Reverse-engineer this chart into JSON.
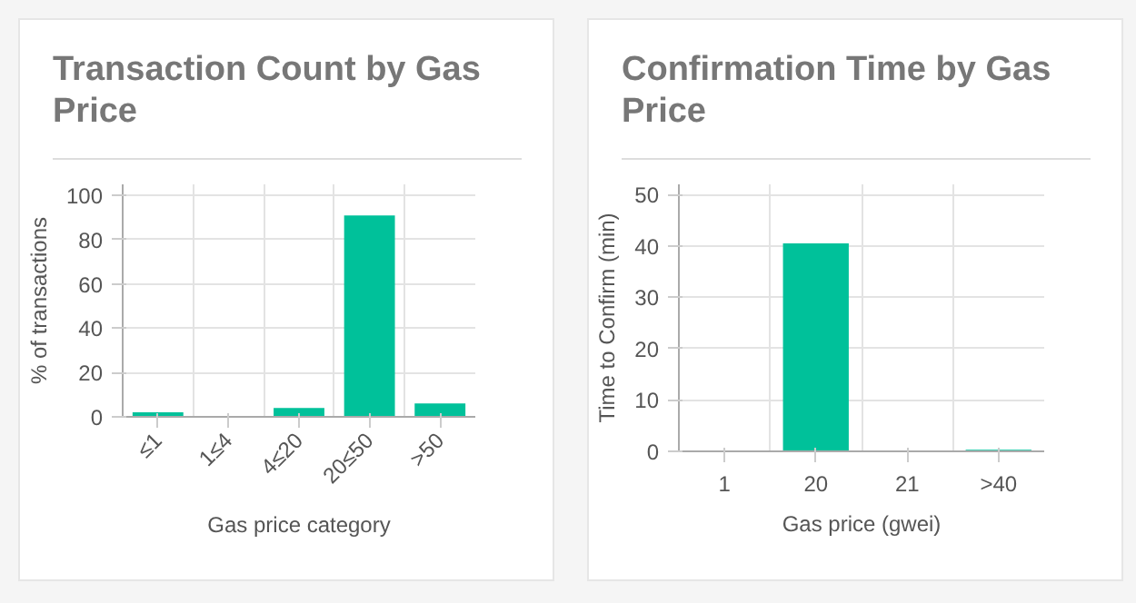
{
  "chart_data": [
    {
      "type": "bar",
      "title": "Transaction Count by Gas Price",
      "xlabel": "Gas price category",
      "ylabel": "% of transactions",
      "categories": [
        "≤1",
        "1≤4",
        "4≤20",
        "20≤50",
        ">50"
      ],
      "values": [
        2,
        0,
        4,
        91,
        6
      ],
      "color": "#00c19a",
      "ylim": [
        0,
        105
      ],
      "yticks": [
        0,
        20,
        40,
        60,
        80,
        100
      ],
      "grid": true
    },
    {
      "type": "bar",
      "title": "Confirmation Time by Gas Price",
      "xlabel": "Gas price (gwei)",
      "ylabel": "Time to Confirm (min)",
      "categories": [
        "1",
        "20",
        "21",
        ">40"
      ],
      "values": [
        0,
        40.5,
        0,
        0.3
      ],
      "color": "#00c19a",
      "ylim": [
        0,
        52
      ],
      "yticks": [
        0,
        10,
        20,
        30,
        40,
        50
      ],
      "grid": true
    }
  ]
}
